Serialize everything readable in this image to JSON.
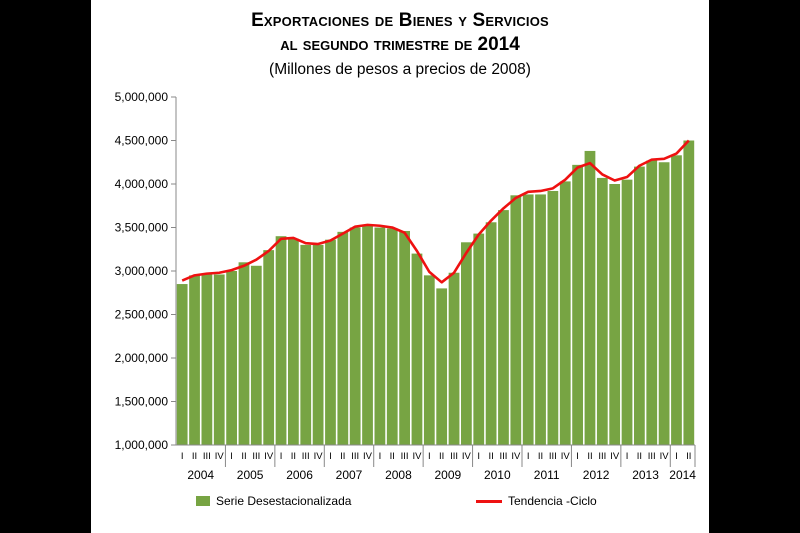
{
  "chart_data": {
    "type": "bar",
    "title": "Exportaciones de Bienes y Servicios",
    "title_line2": "al segundo trimestre de 2014",
    "subtitle": "(Millones de pesos a precios de 2008)",
    "ylim": [
      1000000,
      5000000
    ],
    "yticks": [
      "1,000,000",
      "1,500,000",
      "2,000,000",
      "2,500,000",
      "3,000,000",
      "3,500,000",
      "4,000,000",
      "4,500,000",
      "5,000,000"
    ],
    "years": [
      "2004",
      "2005",
      "2006",
      "2007",
      "2008",
      "2009",
      "2010",
      "2011",
      "2012",
      "2013",
      "2014"
    ],
    "quarter_labels": [
      "I",
      "II",
      "III",
      "IV"
    ],
    "categories": [
      "2004 I",
      "2004 II",
      "2004 III",
      "2004 IV",
      "2005 I",
      "2005 II",
      "2005 III",
      "2005 IV",
      "2006 I",
      "2006 II",
      "2006 III",
      "2006 IV",
      "2007 I",
      "2007 II",
      "2007 III",
      "2007 IV",
      "2008 I",
      "2008 II",
      "2008 III",
      "2008 IV",
      "2009 I",
      "2009 II",
      "2009 III",
      "2009 IV",
      "2010 I",
      "2010 II",
      "2010 III",
      "2010 IV",
      "2011 I",
      "2011 II",
      "2011 III",
      "2011 IV",
      "2012 I",
      "2012 II",
      "2012 III",
      "2012 IV",
      "2013 I",
      "2013 II",
      "2013 III",
      "2013 IV",
      "2014 I",
      "2014 II"
    ],
    "series": [
      {
        "name": "Serie Desestacionalizada",
        "type": "bar",
        "color": "#77a443",
        "values": [
          2850000,
          2950000,
          2960000,
          2960000,
          3000000,
          3100000,
          3060000,
          3240000,
          3400000,
          3370000,
          3300000,
          3300000,
          3360000,
          3450000,
          3500000,
          3530000,
          3500000,
          3490000,
          3460000,
          3200000,
          2950000,
          2800000,
          2980000,
          3330000,
          3430000,
          3560000,
          3700000,
          3870000,
          3880000,
          3880000,
          3920000,
          4030000,
          4220000,
          4380000,
          4070000,
          4000000,
          4050000,
          4200000,
          4270000,
          4250000,
          4330000,
          4500000
        ]
      },
      {
        "name": "Tendencia -Ciclo",
        "type": "line",
        "color": "#ee1111",
        "values": [
          2890000,
          2950000,
          2970000,
          2980000,
          3010000,
          3060000,
          3130000,
          3230000,
          3370000,
          3380000,
          3320000,
          3310000,
          3350000,
          3430000,
          3510000,
          3530000,
          3520000,
          3500000,
          3440000,
          3230000,
          2990000,
          2870000,
          2980000,
          3210000,
          3420000,
          3580000,
          3720000,
          3840000,
          3910000,
          3920000,
          3950000,
          4050000,
          4190000,
          4240000,
          4110000,
          4040000,
          4080000,
          4210000,
          4280000,
          4290000,
          4350000,
          4500000
        ]
      }
    ],
    "legend_position": "bottom",
    "grid": false
  }
}
